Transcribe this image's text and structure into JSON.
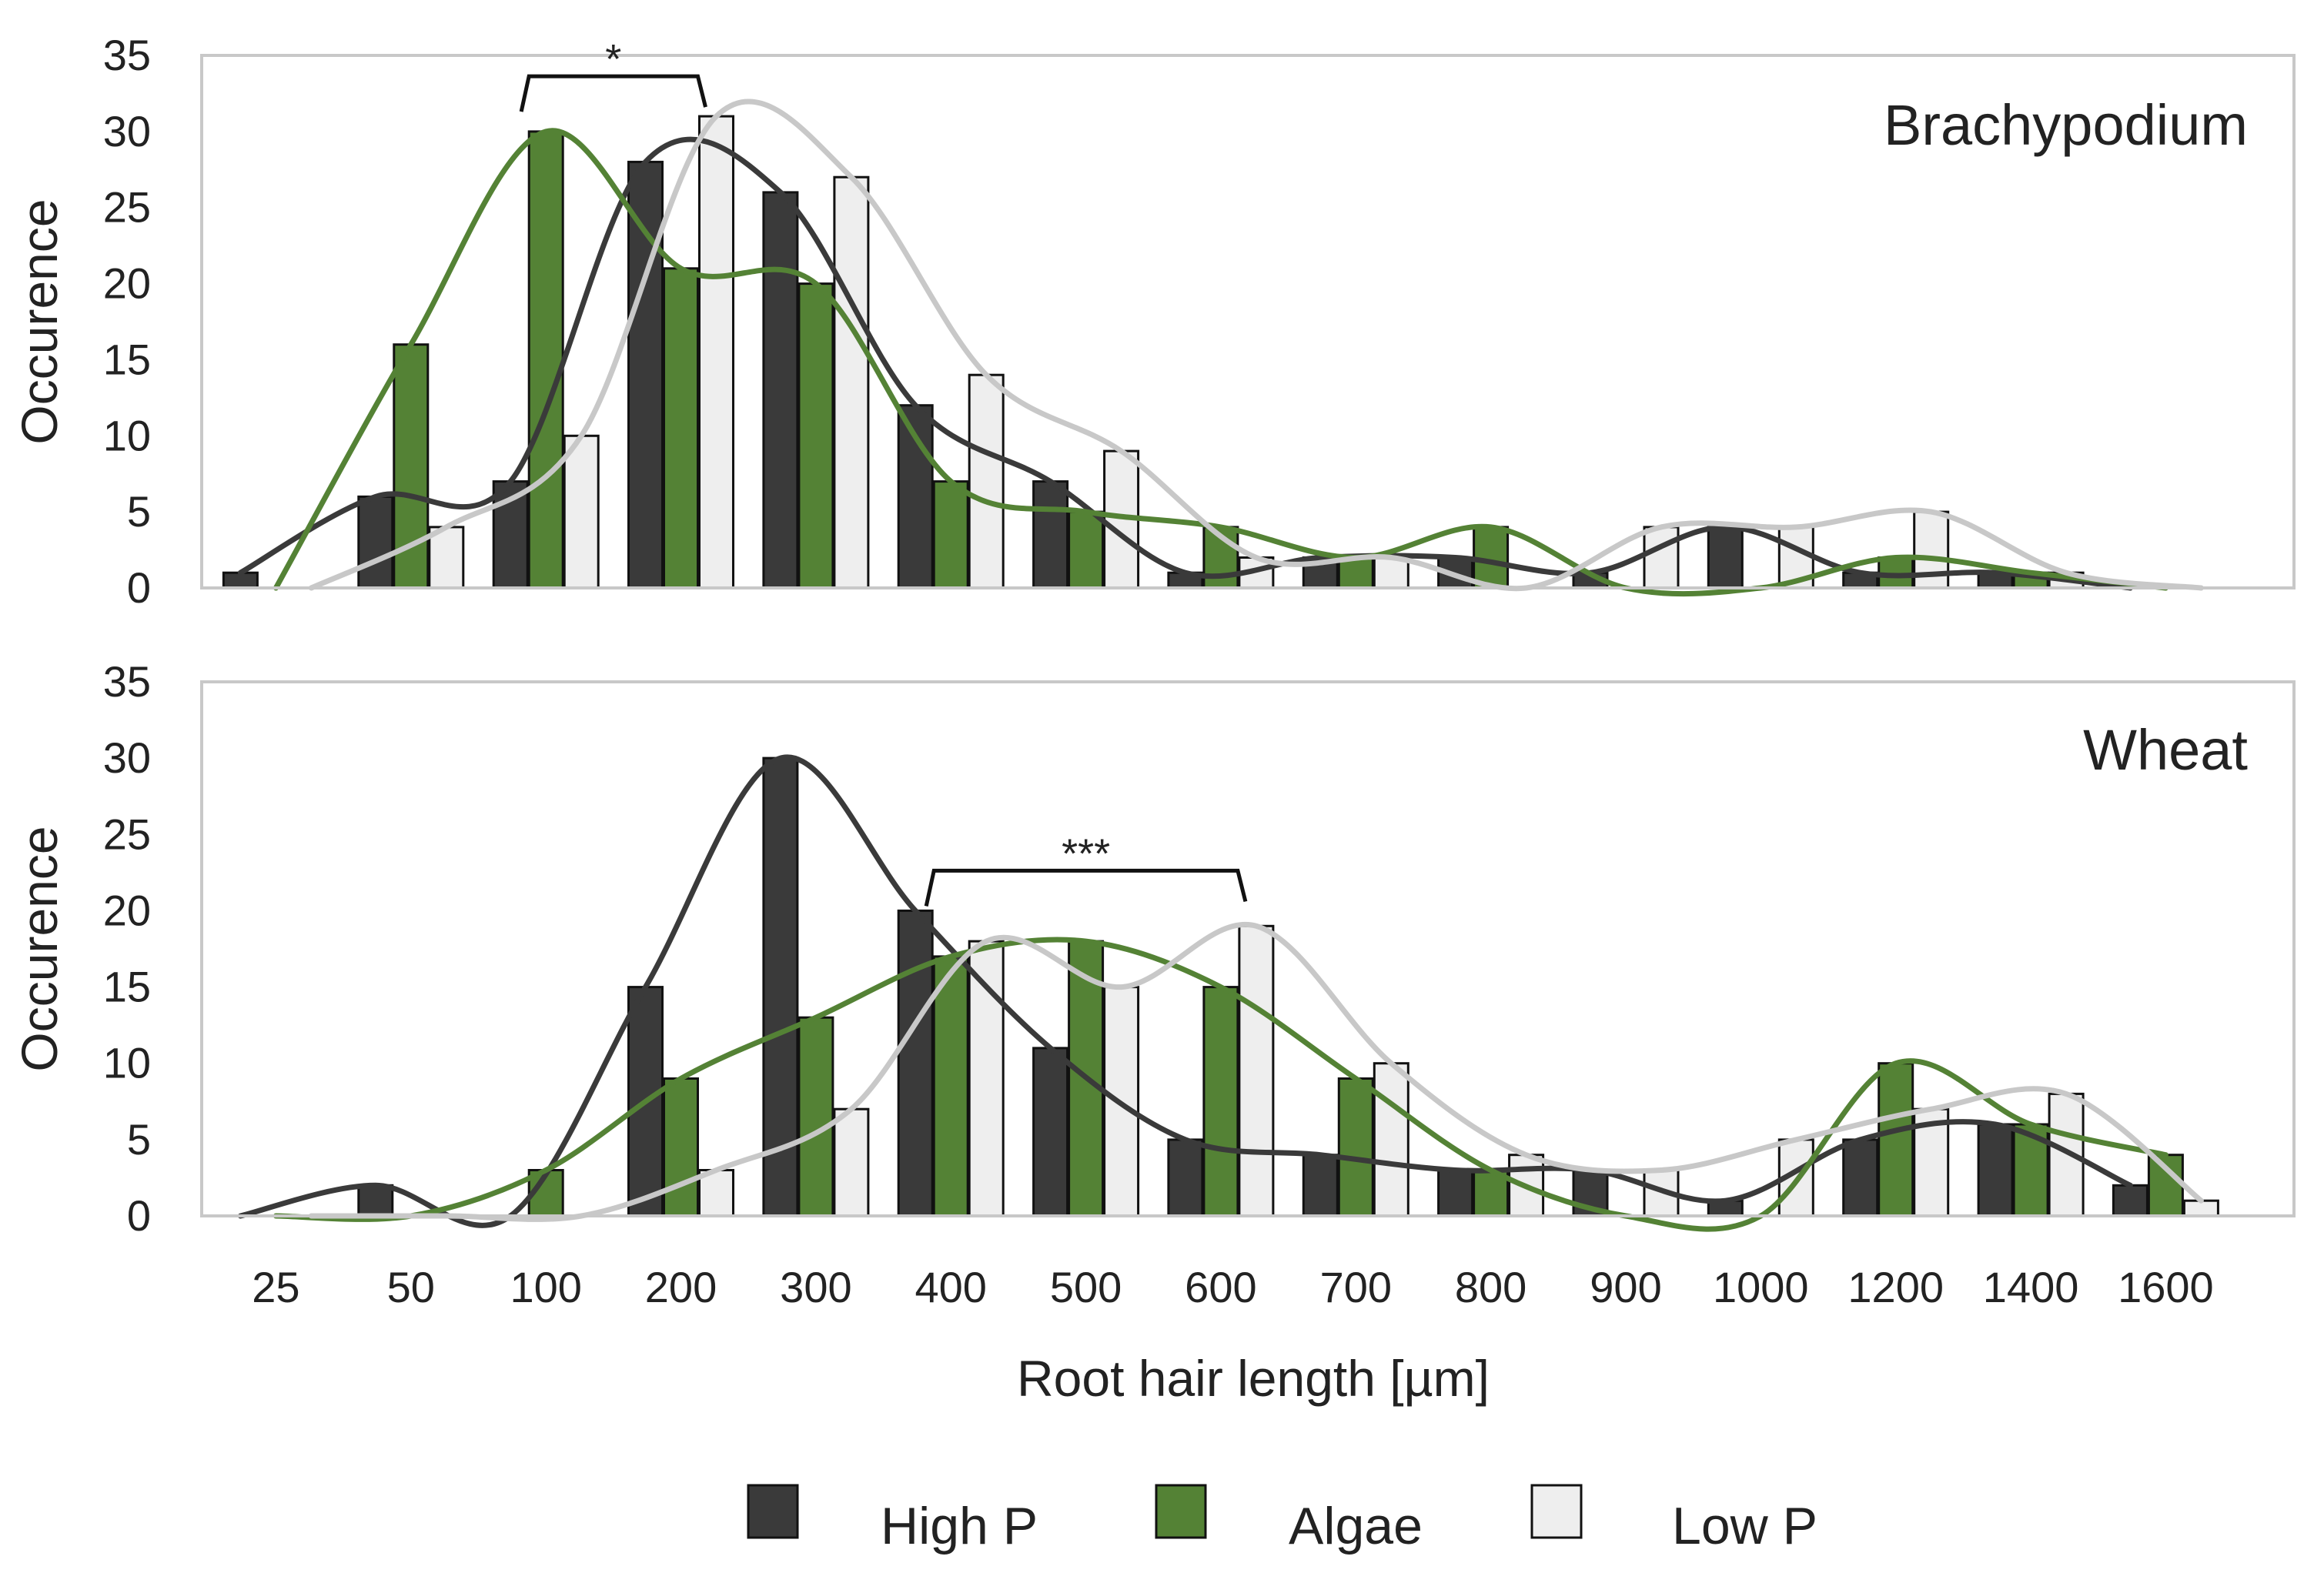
{
  "colors": {
    "high_p": "#3a3a3a",
    "algae": "#548235",
    "low_p": "#eeeeee",
    "low_p_curve": "#c8c8c8",
    "bar_edge": "#111111",
    "frame": "#c8c8c8"
  },
  "chart_data": [
    {
      "type": "bar",
      "title": "Brachypodium",
      "ylabel": "Occurence",
      "xlabel": "",
      "ylim": [
        0,
        35
      ],
      "yticks": [
        0,
        5,
        10,
        15,
        20,
        25,
        30,
        35
      ],
      "categories": [
        "25",
        "50",
        "100",
        "200",
        "300",
        "400",
        "500",
        "600",
        "700",
        "800",
        "900",
        "1000",
        "1200",
        "1400",
        "1600"
      ],
      "series": [
        {
          "name": "High P",
          "values": [
            1,
            6,
            7,
            28,
            26,
            12,
            7,
            1,
            2,
            2,
            1,
            4,
            1,
            1,
            0
          ]
        },
        {
          "name": "Algae",
          "values": [
            0,
            16,
            30,
            21,
            20,
            7,
            5,
            4,
            2,
            4,
            0,
            0,
            2,
            1,
            0
          ]
        },
        {
          "name": "Low P",
          "values": [
            0,
            4,
            10,
            31,
            27,
            14,
            9,
            2,
            2,
            0,
            4,
            4,
            5,
            1,
            0
          ]
        }
      ],
      "curve_series": "smoothed trend line per series",
      "significance": [
        {
          "label": "*",
          "from": "100",
          "to": "200"
        }
      ]
    },
    {
      "type": "bar",
      "title": "Wheat",
      "ylabel": "Occurence",
      "xlabel": "Root hair length [µm]",
      "ylim": [
        0,
        35
      ],
      "yticks": [
        0,
        5,
        10,
        15,
        20,
        25,
        30,
        35
      ],
      "categories": [
        "25",
        "50",
        "100",
        "200",
        "300",
        "400",
        "500",
        "600",
        "700",
        "800",
        "900",
        "1000",
        "1200",
        "1400",
        "1600"
      ],
      "series": [
        {
          "name": "High P",
          "values": [
            0,
            2,
            0,
            15,
            30,
            20,
            11,
            5,
            4,
            3,
            3,
            1,
            5,
            6,
            2
          ]
        },
        {
          "name": "Algae",
          "values": [
            0,
            0,
            3,
            9,
            13,
            17,
            18,
            15,
            9,
            3,
            0,
            0,
            10,
            6,
            4
          ]
        },
        {
          "name": "Low P",
          "values": [
            0,
            0,
            0,
            3,
            7,
            18,
            15,
            19,
            10,
            4,
            3,
            5,
            7,
            8,
            1
          ]
        }
      ],
      "significance": [
        {
          "label": "***",
          "from": "400",
          "to": "600"
        }
      ]
    }
  ],
  "legend": [
    {
      "label": "High P",
      "key": "high_p"
    },
    {
      "label": "Algae",
      "key": "algae"
    },
    {
      "label": "Low P",
      "key": "low_p"
    }
  ]
}
